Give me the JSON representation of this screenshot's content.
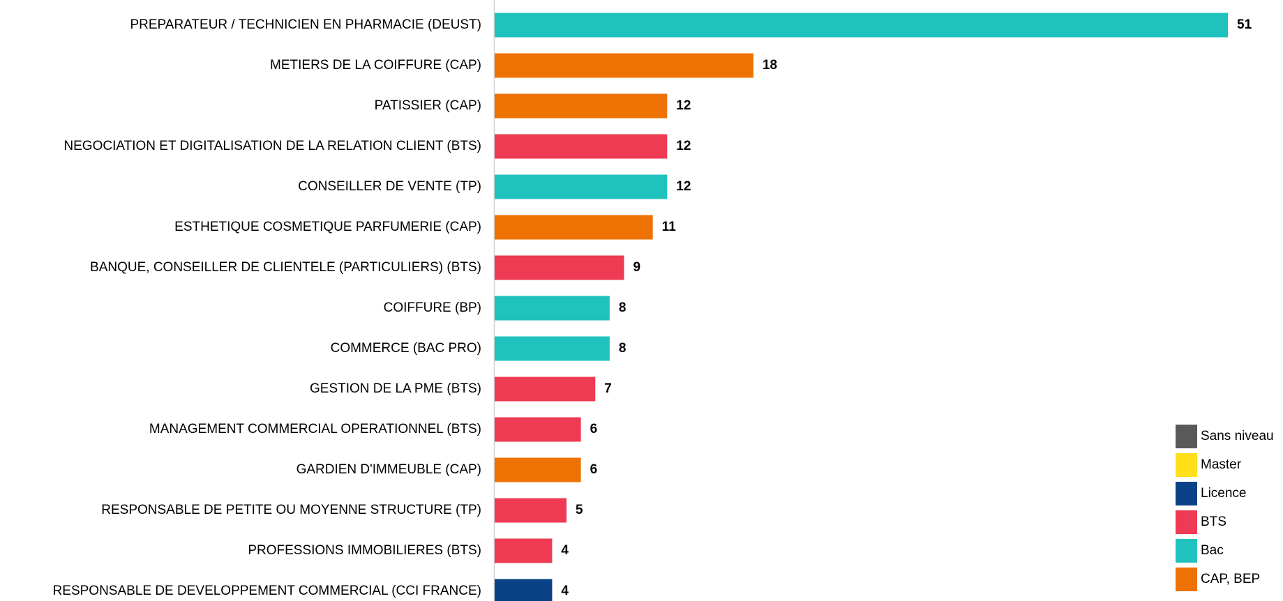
{
  "chart_data": {
    "type": "barh",
    "categories": [
      "PREPARATEUR / TECHNICIEN EN PHARMACIE (DEUST)",
      "METIERS DE LA COIFFURE (CAP)",
      "PATISSIER (CAP)",
      "NEGOCIATION ET DIGITALISATION DE LA RELATION CLIENT (BTS)",
      "CONSEILLER DE VENTE (TP)",
      "ESTHETIQUE COSMETIQUE PARFUMERIE (CAP)",
      "BANQUE, CONSEILLER DE CLIENTELE (PARTICULIERS) (BTS)",
      "COIFFURE (BP)",
      "COMMERCE (BAC PRO)",
      "GESTION DE LA PME (BTS)",
      "MANAGEMENT COMMERCIAL OPERATIONNEL (BTS)",
      "GARDIEN D'IMMEUBLE (CAP)",
      "RESPONSABLE DE PETITE OU MOYENNE STRUCTURE (TP)",
      "PROFESSIONS IMMOBILIERES (BTS)",
      "RESPONSABLE DE DEVELOPPEMENT COMMERCIAL (CCI FRANCE)"
    ],
    "series": [
      {
        "name": "Sans niveau",
        "color": "#595959",
        "values": [
          null,
          null,
          null,
          null,
          null,
          null,
          null,
          null,
          null,
          null,
          null,
          null,
          null,
          null,
          null
        ]
      },
      {
        "name": "Master",
        "color": "#ffe01b",
        "values": [
          null,
          null,
          null,
          null,
          null,
          null,
          null,
          null,
          null,
          null,
          null,
          null,
          null,
          null,
          null
        ]
      },
      {
        "name": "Licence",
        "color": "#0b4186",
        "values": [
          null,
          null,
          null,
          null,
          null,
          null,
          null,
          null,
          null,
          null,
          null,
          null,
          null,
          null,
          4
        ]
      },
      {
        "name": "BTS",
        "color": "#ee3a52",
        "values": [
          null,
          null,
          null,
          12,
          null,
          null,
          9,
          null,
          null,
          7,
          6,
          null,
          5,
          4,
          null
        ]
      },
      {
        "name": "Bac",
        "color": "#20c2bd",
        "values": [
          51,
          null,
          null,
          null,
          12,
          null,
          null,
          8,
          8,
          null,
          null,
          null,
          null,
          null,
          null
        ]
      },
      {
        "name": "CAP, BEP",
        "color": "#ee7203",
        "values": [
          null,
          18,
          12,
          null,
          null,
          11,
          null,
          null,
          null,
          null,
          null,
          6,
          null,
          null,
          null
        ]
      }
    ],
    "xlim": [
      0,
      51
    ]
  }
}
